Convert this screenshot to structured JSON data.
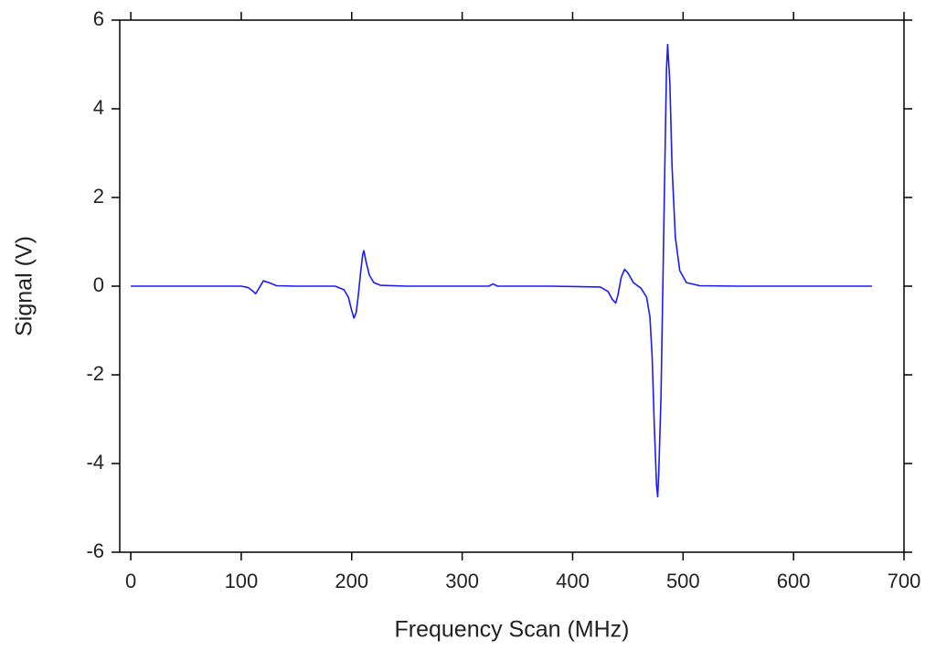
{
  "chart_data": {
    "type": "line",
    "x_label": "Frequency Scan (MHz)",
    "y_label": "Signal (V)",
    "xlim": [
      -10,
      700
    ],
    "ylim": [
      -6,
      6
    ],
    "xticks": [
      0,
      100,
      200,
      300,
      400,
      500,
      600,
      700
    ],
    "yticks": [
      -6,
      -4,
      -2,
      0,
      2,
      4,
      6
    ],
    "grid": false,
    "series": [
      {
        "color": "#1a1aff",
        "x": [
          0,
          50,
          100,
          106,
          110,
          113,
          116,
          120,
          125,
          132,
          150,
          185,
          193,
          197,
          200,
          202,
          204,
          206,
          208,
          210,
          211,
          213,
          216,
          220,
          226,
          250,
          300,
          324,
          328,
          332,
          380,
          425,
          432,
          436,
          439,
          441,
          444,
          447,
          450,
          455,
          462,
          467,
          470,
          472,
          474,
          476,
          477,
          478,
          480,
          482,
          484,
          485,
          486,
          488,
          490,
          493,
          497,
          503,
          515,
          550,
          600,
          671
        ],
        "values": [
          0,
          0,
          0,
          -0.03,
          -0.1,
          -0.17,
          -0.05,
          0.12,
          0.08,
          0.01,
          0,
          0,
          -0.08,
          -0.25,
          -0.55,
          -0.72,
          -0.6,
          -0.2,
          0.3,
          0.72,
          0.8,
          0.55,
          0.25,
          0.08,
          0.02,
          0,
          0,
          0,
          0.05,
          0,
          0,
          -0.02,
          -0.12,
          -0.3,
          -0.38,
          -0.2,
          0.2,
          0.38,
          0.3,
          0.08,
          -0.05,
          -0.25,
          -0.7,
          -1.6,
          -3.2,
          -4.5,
          -4.75,
          -4.2,
          -2.5,
          0.5,
          3.5,
          4.9,
          5.45,
          4.6,
          2.7,
          1.1,
          0.35,
          0.08,
          0.01,
          0,
          0,
          0
        ]
      }
    ]
  }
}
